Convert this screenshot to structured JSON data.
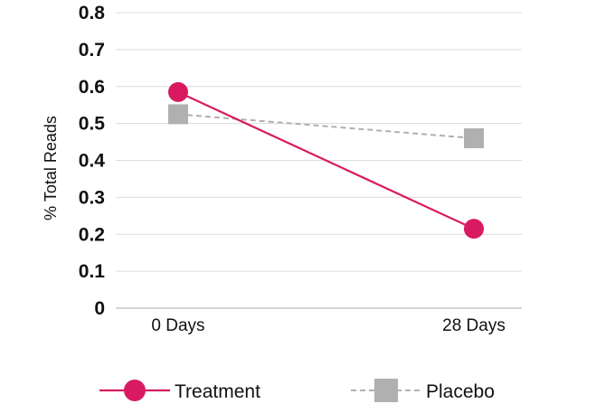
{
  "chart_data": {
    "type": "line",
    "title": "",
    "xlabel": "",
    "ylabel": "% Total Reads",
    "categories": [
      "0 Days",
      "28 Days"
    ],
    "ylim": [
      0,
      0.8
    ],
    "yticks": [
      "0",
      "0.1",
      "0.2",
      "0.3",
      "0.4",
      "0.5",
      "0.6",
      "0.7",
      "0.8"
    ],
    "grid": "horizontal",
    "legend_position": "bottom",
    "series": [
      {
        "name": "Treatment",
        "values": [
          0.585,
          0.215
        ],
        "color": "#d81b60",
        "line_style": "solid",
        "marker": "circle"
      },
      {
        "name": "Placebo",
        "values": [
          0.525,
          0.46
        ],
        "color": "#b0b0b0",
        "line_style": "dashed",
        "marker": "square"
      }
    ]
  }
}
